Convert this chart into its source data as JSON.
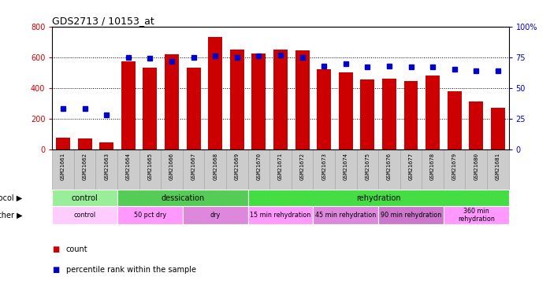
{
  "title": "GDS2713 / 10153_at",
  "samples": [
    "GSM21661",
    "GSM21662",
    "GSM21663",
    "GSM21664",
    "GSM21665",
    "GSM21666",
    "GSM21667",
    "GSM21668",
    "GSM21669",
    "GSM21670",
    "GSM21671",
    "GSM21672",
    "GSM21673",
    "GSM21674",
    "GSM21675",
    "GSM21676",
    "GSM21677",
    "GSM21678",
    "GSM21679",
    "GSM21680",
    "GSM21681"
  ],
  "counts": [
    75,
    72,
    45,
    575,
    530,
    620,
    530,
    730,
    650,
    625,
    650,
    645,
    520,
    500,
    455,
    460,
    445,
    480,
    380,
    310,
    270
  ],
  "percentiles": [
    33,
    33,
    28,
    75,
    74,
    72,
    75,
    76,
    75,
    76,
    77,
    75,
    68,
    70,
    67,
    68,
    67,
    67,
    65,
    64,
    64
  ],
  "ylim_left": [
    0,
    800
  ],
  "ylim_right": [
    0,
    100
  ],
  "yticks_left": [
    0,
    200,
    400,
    600,
    800
  ],
  "yticks_right": [
    0,
    25,
    50,
    75,
    100
  ],
  "bar_color": "#cc0000",
  "dot_color": "#0000cc",
  "protocol_groups": [
    {
      "label": "control",
      "start": 0,
      "end": 3,
      "color": "#99ee99"
    },
    {
      "label": "dessication",
      "start": 3,
      "end": 9,
      "color": "#55cc55"
    },
    {
      "label": "rehydration",
      "start": 9,
      "end": 21,
      "color": "#44dd44"
    }
  ],
  "other_groups": [
    {
      "label": "control",
      "start": 0,
      "end": 3,
      "color": "#ffccff"
    },
    {
      "label": "50 pct dry",
      "start": 3,
      "end": 6,
      "color": "#ff99ff"
    },
    {
      "label": "dry",
      "start": 6,
      "end": 9,
      "color": "#dd88dd"
    },
    {
      "label": "15 min rehydration",
      "start": 9,
      "end": 12,
      "color": "#ff99ff"
    },
    {
      "label": "45 min rehydration",
      "start": 12,
      "end": 15,
      "color": "#dd88dd"
    },
    {
      "label": "90 min rehydration",
      "start": 15,
      "end": 18,
      "color": "#cc77cc"
    },
    {
      "label": "360 min\nrehydration",
      "start": 18,
      "end": 21,
      "color": "#ff99ff"
    }
  ],
  "bg_color": "#ffffff",
  "tick_box_color": "#cccccc",
  "tick_border_color": "#aaaaaa"
}
